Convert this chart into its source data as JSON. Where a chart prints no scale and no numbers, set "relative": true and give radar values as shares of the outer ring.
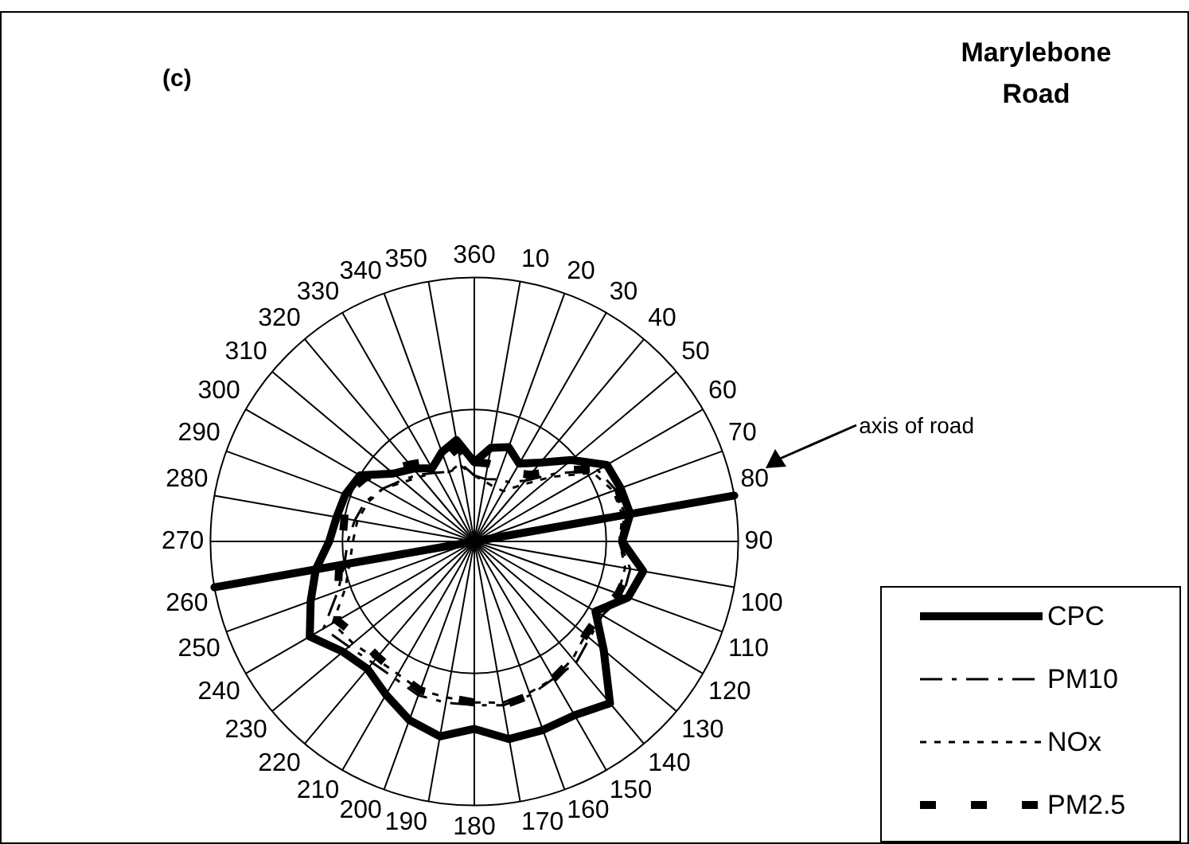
{
  "chart_data": {
    "type": "radar",
    "title": "Marylebone Road",
    "relative": true,
    "legend": "bottom right",
    "grid": true,
    "marker": "none",
    "annotations": [
      "(c)",
      {
        "text": "axis of road",
        "x": "80"
      }
    ],
    "categories": [
      "360",
      "10",
      "20",
      "30",
      "40",
      "50",
      "60",
      "70",
      "80",
      "90",
      "100",
      "110",
      "120",
      "130",
      "140",
      "150",
      "160",
      "170",
      "180",
      "190",
      "200",
      "210",
      "220",
      "230",
      "240",
      "250",
      "260",
      "270",
      "280",
      "290",
      "300",
      "310",
      "320",
      "330",
      "340",
      "350"
    ],
    "series": [
      {
        "name": "CPC",
        "color": "#000000",
        "line_style": "solid",
        "values": [
          0.3,
          0.36,
          0.38,
          0.34,
          0.39,
          0.48,
          0.58,
          0.59,
          0.6,
          0.56,
          0.65,
          0.62,
          0.53,
          0.64,
          0.8,
          0.76,
          0.76,
          0.76,
          0.71,
          0.75,
          0.72,
          0.67,
          0.63,
          0.65,
          0.72,
          0.66,
          0.61,
          0.55,
          0.53,
          0.52,
          0.5,
          0.4,
          0.36,
          0.32,
          0.36,
          0.39
        ]
      },
      {
        "name": "PM10",
        "color": "#000000",
        "line_style": "dashed",
        "values": [
          0.25,
          0.24,
          0.25,
          0.26,
          0.3,
          0.4,
          0.54,
          0.57,
          0.58,
          0.55,
          0.6,
          0.6,
          0.56,
          0.57,
          0.6,
          0.6,
          0.62,
          0.63,
          0.62,
          0.62,
          0.62,
          0.6,
          0.6,
          0.62,
          0.66,
          0.55,
          0.5,
          0.48,
          0.46,
          0.44,
          0.4,
          0.36,
          0.33,
          0.3,
          0.28,
          0.3
        ]
      },
      {
        "name": "NOx",
        "color": "#000000",
        "line_style": "dotted",
        "values": [
          0.25,
          0.23,
          0.22,
          0.22,
          0.28,
          0.38,
          0.52,
          0.56,
          0.57,
          0.55,
          0.58,
          0.58,
          0.55,
          0.55,
          0.58,
          0.6,
          0.61,
          0.62,
          0.61,
          0.6,
          0.6,
          0.58,
          0.58,
          0.6,
          0.62,
          0.52,
          0.48,
          0.46,
          0.45,
          0.43,
          0.4,
          0.35,
          0.32,
          0.3,
          0.28,
          0.29
        ]
      },
      {
        "name": "PM2.5",
        "color": "#000000",
        "line_style": "dashed",
        "values": [
          0.3,
          0.3,
          0.3,
          0.3,
          0.33,
          0.42,
          0.55,
          0.58,
          0.58,
          0.56,
          0.6,
          0.58,
          0.55,
          0.55,
          0.58,
          0.6,
          0.62,
          0.63,
          0.61,
          0.6,
          0.6,
          0.58,
          0.57,
          0.57,
          0.6,
          0.55,
          0.52,
          0.5,
          0.5,
          0.52,
          0.48,
          0.42,
          0.38,
          0.35,
          0.33,
          0.36
        ]
      },
      {
        "color": "#000000",
        "line_style": "solid",
        "values": [
          0,
          0,
          0,
          0,
          0,
          0,
          0,
          0,
          1,
          0,
          0,
          0,
          0,
          0,
          0,
          0,
          0,
          0,
          0,
          0,
          0,
          0,
          0,
          0,
          0,
          0,
          1,
          0,
          0,
          0,
          0,
          0,
          0,
          0,
          0,
          0
        ]
      }
    ]
  }
}
